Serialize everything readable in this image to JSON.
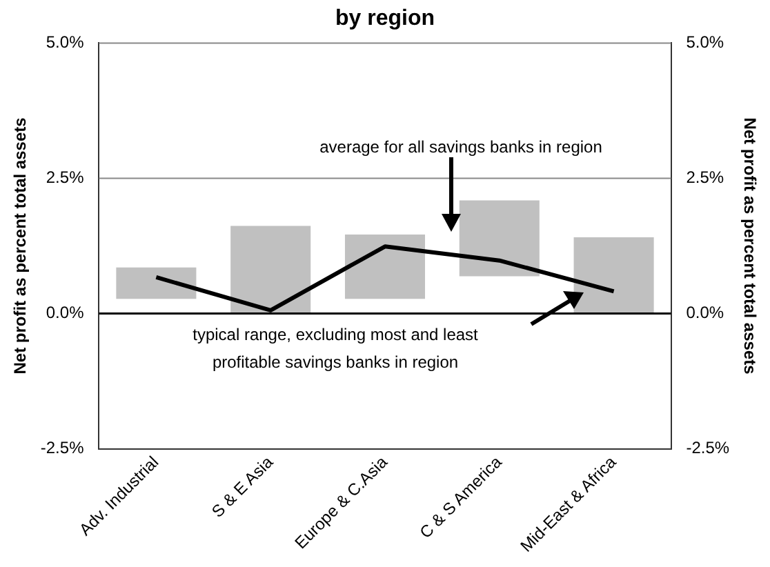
{
  "chart_data": {
    "type": "bar",
    "title": "by region",
    "categories": [
      "Adv. Industrial",
      "S & E Asia",
      "Europe & C.Asia",
      "C & S America",
      "Mid-East & Africa"
    ],
    "series": [
      {
        "type": "bar",
        "color": "#c0c0c0",
        "base": [
          0.27,
          0,
          0.27,
          0.69,
          0
        ],
        "values": [
          0.58,
          1.62,
          1.19,
          1.4,
          1.41
        ]
      },
      {
        "type": "line",
        "color": "#000000",
        "values": [
          0.67,
          0.06,
          1.24,
          0.98,
          0.41
        ]
      }
    ],
    "ylabel": "Net profit as percent total assets",
    "y2label": "Net profit as percent total assets",
    "ylim": [
      -2.5,
      5
    ],
    "yticks": [
      {
        "value": -2.5,
        "label": "-2.5%"
      },
      {
        "value": 0,
        "label": "0.0%"
      },
      {
        "value": 2.5,
        "label": "2.5%"
      },
      {
        "value": 5,
        "label": "5.0%"
      }
    ],
    "y2lim": [
      -2.5,
      5
    ],
    "y2ticks": [
      {
        "value": -2.5,
        "label": "-2.5%"
      },
      {
        "value": 0,
        "label": "0.0%"
      },
      {
        "value": 2.5,
        "label": "2.5%"
      },
      {
        "value": 5,
        "label": "5.0%"
      }
    ],
    "annotations": [
      "average for all savings banks in region",
      "typical range, excluding most and least\nprofitable savings banks in region"
    ],
    "ref_lines": [
      {
        "axis": "y",
        "value": 0,
        "color": "#000000"
      },
      {
        "axis": "y",
        "value": 2.5,
        "color": "#888888"
      },
      {
        "axis": "y",
        "value": 5,
        "color": "#888888"
      }
    ],
    "legend": false,
    "marker": "none",
    "line_style": "solid"
  }
}
